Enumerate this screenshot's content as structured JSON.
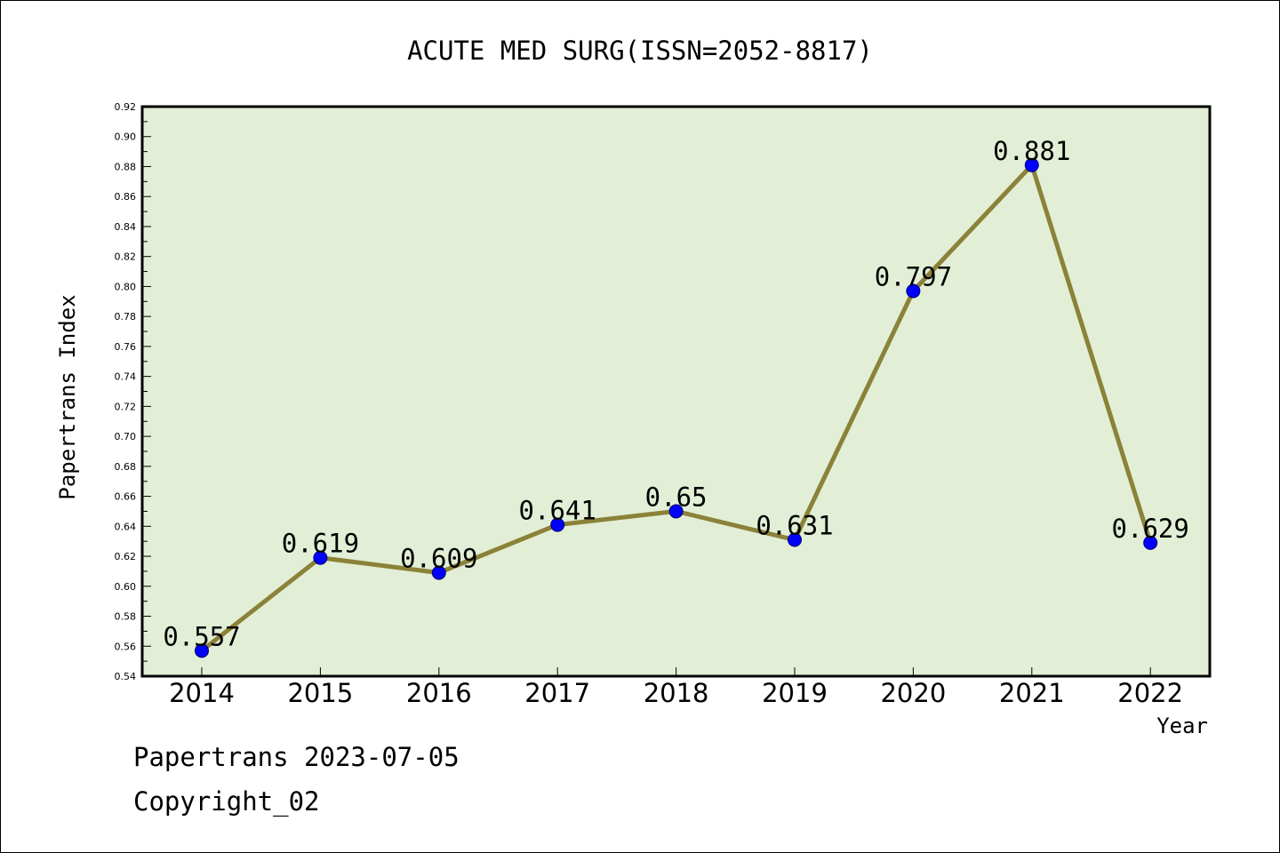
{
  "chart_data": {
    "type": "line",
    "title": "ACUTE MED SURG(ISSN=2052-8817)",
    "xlabel": "Year",
    "ylabel": "Papertrans Index",
    "categories": [
      "2014",
      "2015",
      "2016",
      "2017",
      "2018",
      "2019",
      "2020",
      "2021",
      "2022"
    ],
    "values": [
      0.557,
      0.619,
      0.609,
      0.641,
      0.65,
      0.631,
      0.797,
      0.881,
      0.629
    ],
    "value_labels": [
      "0.557",
      "0.619",
      "0.609",
      "0.641",
      "0.65",
      "0.631",
      "0.797",
      "0.881",
      "0.629"
    ],
    "ylim": [
      0.54,
      0.92
    ],
    "yticks": [
      "0.54",
      "0.56",
      "0.58",
      "0.60",
      "0.62",
      "0.64",
      "0.66",
      "0.68",
      "0.70",
      "0.72",
      "0.74",
      "0.76",
      "0.78",
      "0.80",
      "0.82",
      "0.84",
      "0.86",
      "0.88",
      "0.90",
      "0.92"
    ],
    "grid": false,
    "colors": {
      "plot_background": "#e2efd6",
      "line": "#8b8239",
      "marker": "#0000ff"
    }
  },
  "footer": {
    "date_line": "Papertrans 2023-07-05",
    "copyright": "Copyright_02"
  }
}
